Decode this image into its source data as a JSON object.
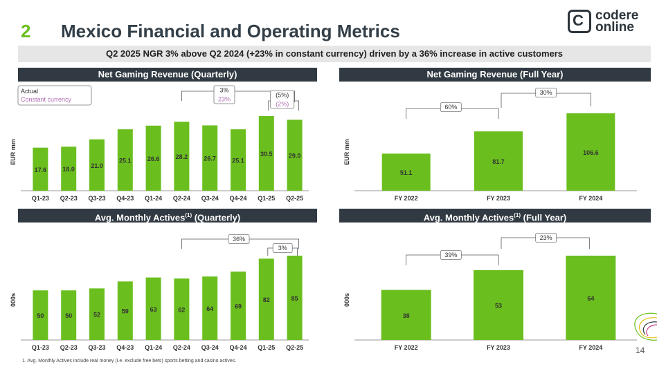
{
  "header": {
    "section_number": "2",
    "title": "Mexico Financial and Operating Metrics",
    "logo_line1": "codere",
    "logo_line2": "online"
  },
  "subtitle": "Q2 2025 NGR 3% above Q2 2024 (+23% in constant currency) driven by a 36% increase in active customers",
  "panels": {
    "ngr_q": {
      "title": "Net Gaming Revenue (Quarterly)"
    },
    "ngr_fy": {
      "title": "Net Gaming Revenue (Full Year)"
    },
    "mau_q": {
      "title_main": "Avg. Monthly Actives",
      "title_sup": "(1)",
      "title_suffix": " (Quarterly)"
    },
    "mau_fy": {
      "title_main": "Avg. Monthly Actives",
      "title_sup": "(1)",
      "title_suffix": " (Full Year)"
    }
  },
  "footnote": "1.     Avg. Monthly Actives include real money (i.e. exclude free bets) sports betting and casino actives.",
  "page_number": "14",
  "colors": {
    "bar": "#6abf1e",
    "header_bg": "#313a42",
    "accent_green": "#6abf1e",
    "constant_currency": "#b06fb5"
  },
  "chart_data": [
    {
      "type": "bar",
      "title": "Net Gaming Revenue (Quarterly)",
      "ylabel": "EUR mm",
      "categories": [
        "Q1-23",
        "Q2-23",
        "Q3-23",
        "Q4-23",
        "Q1-24",
        "Q2-24",
        "Q3-24",
        "Q4-24",
        "Q1-25",
        "Q2-25"
      ],
      "values": [
        17.6,
        18.0,
        21.0,
        25.1,
        26.6,
        28.2,
        26.7,
        25.1,
        30.5,
        29.0
      ],
      "value_labels": [
        "17.6",
        "18.0",
        "21.0",
        "25.1",
        "26.6",
        "28.2",
        "26.7",
        "25.1",
        "30.5",
        "29.0"
      ],
      "legend": {
        "actual": "Actual",
        "constant": "Constant currency"
      },
      "annotations": [
        {
          "from": "Q2-24",
          "to": "Q2-25",
          "actual": "3%",
          "constant": "23%"
        },
        {
          "from": "Q1-25",
          "to": "Q2-25",
          "actual": "(5%)",
          "constant": "(2%)"
        }
      ]
    },
    {
      "type": "bar",
      "title": "Net Gaming Revenue (Full Year)",
      "ylabel": "EUR mm",
      "categories": [
        "FY 2022",
        "FY 2023",
        "FY 2024"
      ],
      "values": [
        51.1,
        81.7,
        106.6
      ],
      "value_labels": [
        "51.1",
        "81.7",
        "106.6"
      ],
      "annotations": [
        {
          "from": "FY 2022",
          "to": "FY 2023",
          "label": "60%"
        },
        {
          "from": "FY 2023",
          "to": "FY 2024",
          "label": "30%"
        }
      ]
    },
    {
      "type": "bar",
      "title": "Avg. Monthly Actives(1) (Quarterly)",
      "ylabel": "000s",
      "categories": [
        "Q1-23",
        "Q2-23",
        "Q3-23",
        "Q4-23",
        "Q1-24",
        "Q2-24",
        "Q3-24",
        "Q4-24",
        "Q1-25",
        "Q2-25"
      ],
      "values": [
        50,
        50,
        52,
        59,
        63,
        62,
        64,
        69,
        82,
        85
      ],
      "value_labels": [
        "50",
        "50",
        "52",
        "59",
        "63",
        "62",
        "64",
        "69",
        "82",
        "85"
      ],
      "annotations": [
        {
          "from": "Q2-24",
          "to": "Q2-25",
          "label": "36%"
        },
        {
          "from": "Q1-25",
          "to": "Q2-25",
          "label": "3%"
        }
      ]
    },
    {
      "type": "bar",
      "title": "Avg. Monthly Actives(1) (Full Year)",
      "ylabel": "000s",
      "categories": [
        "FY 2022",
        "FY 2023",
        "FY 2024"
      ],
      "values": [
        38,
        53,
        64
      ],
      "value_labels": [
        "38",
        "53",
        "64"
      ],
      "annotations": [
        {
          "from": "FY 2022",
          "to": "FY 2023",
          "label": "39%"
        },
        {
          "from": "FY 2023",
          "to": "FY 2024",
          "label": "23%"
        }
      ]
    }
  ]
}
